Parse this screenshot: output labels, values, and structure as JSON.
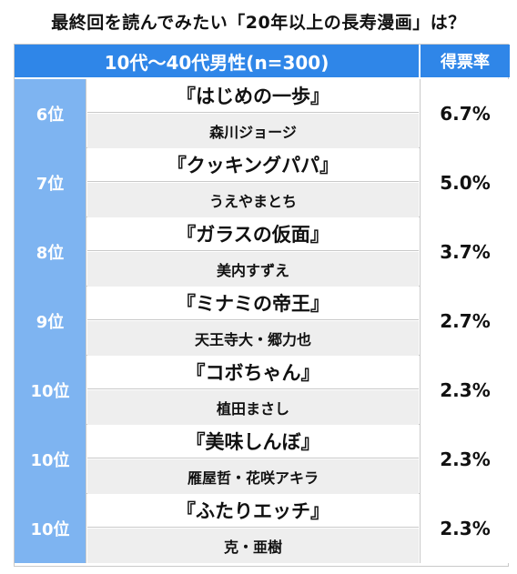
{
  "title": "最終回を読んでみたい「20年以上の長寿漫画」は？",
  "table": {
    "header_group": "10代〜40代男性(n=300)",
    "header_rate": "得票率",
    "rows": [
      {
        "rank": "6位",
        "work": "『はじめの一歩』",
        "author": "森川ジョージ",
        "rate": "6.7%"
      },
      {
        "rank": "7位",
        "work": "『クッキングパパ』",
        "author": "うえやまとち",
        "rate": "5.0%"
      },
      {
        "rank": "8位",
        "work": "『ガラスの仮面』",
        "author": "美内すずえ",
        "rate": "3.7%"
      },
      {
        "rank": "9位",
        "work": "『ミナミの帝王』",
        "author": "天王寺大・郷力也",
        "rate": "2.7%"
      },
      {
        "rank": "10位",
        "work": "『コボちゃん』",
        "author": "植田まさし",
        "rate": "2.3%"
      },
      {
        "rank": "10位",
        "work": "『美味しんぼ』",
        "author": "雁屋哲・花咲アキラ",
        "rate": "2.3%"
      },
      {
        "rank": "10位",
        "work": "『ふたりエッチ』",
        "author": "克・亜樹",
        "rate": "2.3%"
      }
    ]
  },
  "colors": {
    "header_blue": "#2f86e8",
    "rank_blue": "#7eb4f1",
    "author_bg": "#eeeeee"
  }
}
